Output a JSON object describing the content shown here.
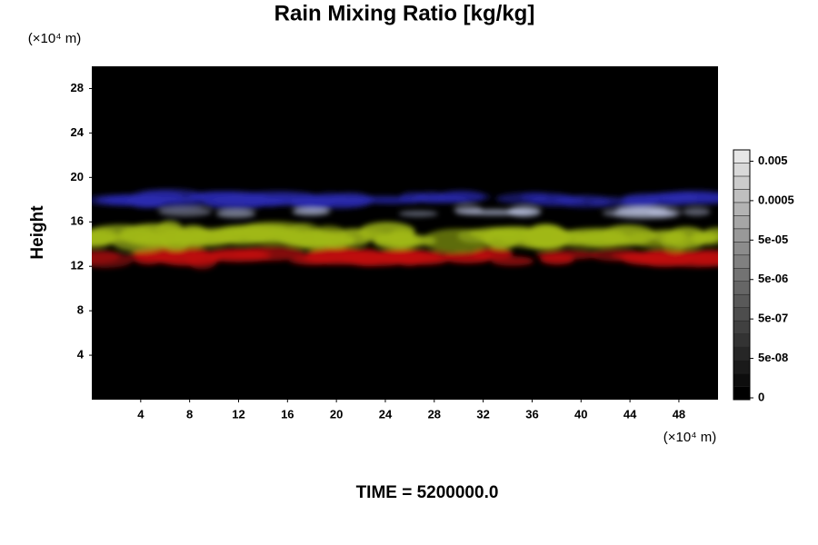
{
  "chart_data": {
    "type": "field",
    "title": "Rain Mixing Ratio [kg/kg]",
    "y_unit_label": "(×10⁴ m)",
    "x_unit_label": "(×10⁴ m)",
    "ylabel": "Height",
    "footer": "TIME = 5200000.0",
    "xlim": [
      0,
      51.2
    ],
    "xticks": [
      4,
      8,
      12,
      16,
      20,
      24,
      28,
      32,
      36,
      40,
      44,
      48
    ],
    "ylim": [
      0,
      30
    ],
    "yticks": [
      4,
      8,
      12,
      16,
      20,
      24,
      28
    ],
    "colorbar_ticks": [
      0,
      {
        "value": 5e-08,
        "label": "5e-08"
      },
      {
        "value": 5e-07,
        "label": "5e-07"
      },
      {
        "value": 5e-06,
        "label": "5e-06"
      },
      {
        "value": 5e-05,
        "label": "5e-05"
      },
      0.0005,
      0.005
    ]
  }
}
